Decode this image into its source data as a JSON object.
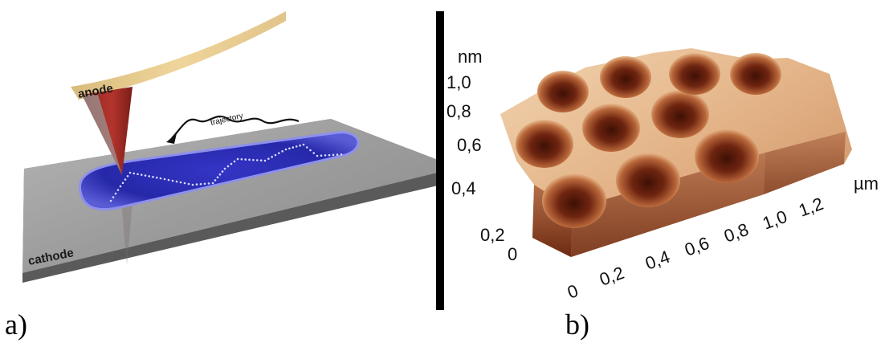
{
  "panel_a": {
    "letter": "a)",
    "anode_label": "anode",
    "cathode_label": "cathode",
    "trajectory_label": "trajectory"
  },
  "panel_b": {
    "letter": "b)",
    "z_unit": "nm",
    "z_ticks": [
      "1,0",
      "0,8",
      "0,6",
      "0,4",
      "0,2",
      "0"
    ],
    "x_unit": "µm",
    "x_ticks": [
      "0",
      "0,2",
      "0,4",
      "0,6",
      "0,8",
      "1,0",
      "1,2"
    ]
  },
  "colors": {
    "anode": "#e5c98a",
    "tip": "#b3342c",
    "cathode": "#8a8a8a",
    "puddle": "#2a2bb0",
    "afm_dark": "#5a1a08",
    "afm_light": "#f3d2ad"
  }
}
